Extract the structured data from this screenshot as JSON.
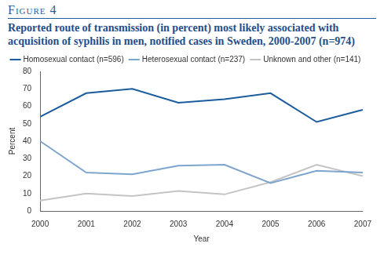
{
  "chart_data": {
    "type": "line",
    "figure_label": "Figure 4",
    "title": "Reported route of transmission (in percent) most likely associated with acquisition of syphilis in men, notified cases in Sweden, 2000-2007 (n=974)",
    "x_label": "Year",
    "y_label": "Percent",
    "categories": [
      "2000",
      "2001",
      "2002",
      "2003",
      "2004",
      "2005",
      "2006",
      "2007"
    ],
    "series": [
      {
        "name": "Homosexual contact (n=596)",
        "color": "#1a5c9e",
        "values": [
          54,
          67.5,
          70,
          62,
          64,
          67.5,
          51,
          58
        ]
      },
      {
        "name": "Heterosexual contact (n=237)",
        "color": "#7ea5cc",
        "values": [
          40,
          22,
          21,
          26,
          26.5,
          16,
          23,
          22
        ]
      },
      {
        "name": "Unknown and other (n=141)",
        "color": "#c4c4c4",
        "values": [
          6,
          10,
          8.5,
          11.5,
          9.5,
          16.5,
          26.5,
          20
        ]
      }
    ],
    "ylim": [
      0,
      80
    ],
    "yticks": [
      0,
      10,
      20,
      30,
      40,
      50,
      60,
      70,
      80
    ],
    "grid": false,
    "legend": "top"
  }
}
